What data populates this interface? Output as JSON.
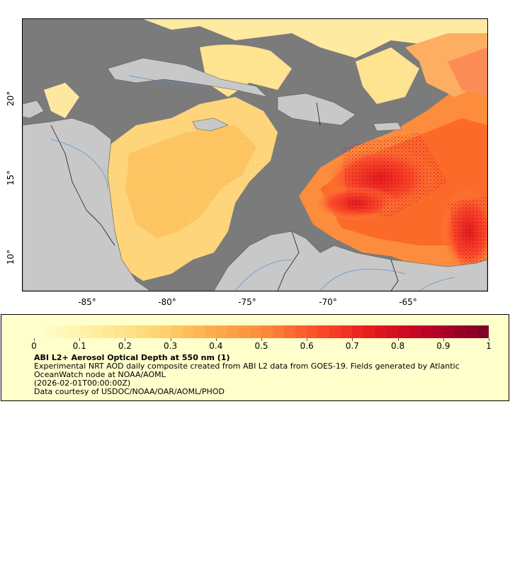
{
  "map": {
    "x_ticks": [
      "-85°",
      "-80°",
      "-75°",
      "-70°",
      "-65°"
    ],
    "y_ticks": [
      "20°",
      "15°",
      "10°"
    ],
    "colors": {
      "ocean_nodata": "#7b7b7b",
      "land": "#c8c8c8",
      "rivers": "#5b8fd6",
      "borders": "#1a1a1a",
      "legend_background": "#ffffcc"
    }
  },
  "legend": {
    "colorbar_ticks": [
      "0",
      "0.1",
      "0.2",
      "0.3",
      "0.4",
      "0.5",
      "0.6",
      "0.7",
      "0.8",
      "0.9",
      "1"
    ],
    "colormap": [
      "#ffffcc",
      "#ffeda0",
      "#fed976",
      "#feb24c",
      "#fd8d3c",
      "#fc4e2a",
      "#e31a1c",
      "#bd0026",
      "#800026"
    ],
    "title": "ABI L2+ Aerosol Optical Depth at 550 nm (1)",
    "lines": [
      "Experimental NRT AOD daily composite created from ABI L2 data from GOES-19. Fields generated by Atlantic OceanWatch node at NOAA/AOML",
      "(2026-02-01T00:00:00Z)",
      "Data courtesy of USDOC/NOAA/OAR/AOML/PHOD"
    ]
  }
}
